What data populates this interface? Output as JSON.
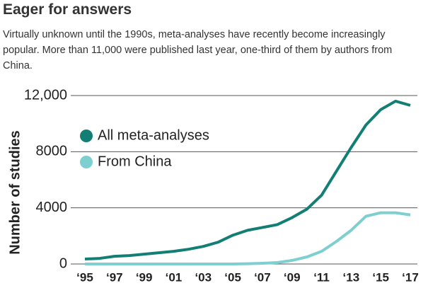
{
  "chart_data": {
    "type": "line",
    "title": "Eager for answers",
    "subtitle": "Virtually unknown until the 1990s, meta-analyses have recently become increasingly popular. More than 11,000 were published last year, one-third of them by authors from China.",
    "y_label": "Number of studies",
    "categories": [
      "‘95",
      null,
      "‘97",
      null,
      "‘99",
      null,
      "‘01",
      null,
      "‘03",
      null,
      "‘05",
      null,
      "‘07",
      null,
      "‘09",
      null,
      "‘11",
      null,
      "‘13",
      null,
      "‘15",
      null,
      "‘17"
    ],
    "series": [
      {
        "name": "All meta-analyses",
        "color": "#137f74",
        "values": [
          350,
          400,
          550,
          600,
          700,
          800,
          900,
          1050,
          1250,
          1550,
          2050,
          2400,
          2600,
          2800,
          3300,
          3900,
          4900,
          6600,
          8300,
          9900,
          11000,
          11600,
          11300
        ]
      },
      {
        "name": "From China",
        "color": "#7ecfd0",
        "values": [
          0,
          0,
          0,
          0,
          0,
          0,
          0,
          0,
          0,
          0,
          0,
          20,
          50,
          100,
          250,
          500,
          900,
          1600,
          2400,
          3400,
          3650,
          3650,
          3500
        ]
      }
    ],
    "ylim": [
      0,
      12000
    ],
    "yticks": [
      0,
      4000,
      8000,
      {
        "value": 12000,
        "label": "12,000"
      }
    ],
    "grid": true,
    "legend": "upper left"
  }
}
